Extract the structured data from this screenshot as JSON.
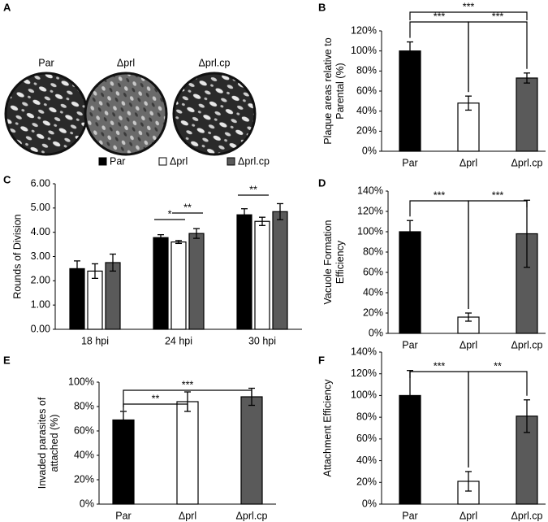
{
  "panel_a": {
    "label": "A",
    "captions": [
      "Par",
      "Δprl",
      "Δprl.cp"
    ]
  },
  "chart_data": [
    {
      "type": "bar",
      "panel_label": "B",
      "ylabel": [
        "Plaque areas relative to",
        "Parental (%)"
      ],
      "categories": [
        "Par",
        "Δprl",
        "Δprl.cp"
      ],
      "values": [
        100,
        48,
        73
      ],
      "errors": [
        9,
        7,
        5
      ],
      "colors": [
        "#000000",
        "#ffffff",
        "#5a5a5a"
      ],
      "ylim": [
        0,
        120
      ],
      "yticks": [
        {
          "value": 0,
          "label": "0%"
        },
        {
          "value": 20,
          "label": "20%"
        },
        {
          "value": 40,
          "label": "40%"
        },
        {
          "value": 60,
          "label": "60%"
        },
        {
          "value": 80,
          "label": "80%"
        },
        {
          "value": 100,
          "label": "100%"
        },
        {
          "value": 120,
          "label": "120%"
        }
      ],
      "comparisons": [
        {
          "label": "***",
          "between": [
            "Par",
            "Δprl"
          ]
        },
        {
          "label": "***",
          "between": [
            "Δprl",
            "Δprl.cp"
          ]
        },
        {
          "label": "***",
          "between": [
            "Par",
            "Δprl.cp"
          ]
        }
      ]
    },
    {
      "type": "grouped-bar",
      "panel_label": "C",
      "ylabel": [
        "Rounds of Division"
      ],
      "categories": [
        "18 hpi",
        "24 hpi",
        "30 hpi"
      ],
      "series": [
        {
          "name": "Par",
          "color": "#000000",
          "values": [
            2.5,
            3.78,
            4.72
          ],
          "errors": [
            0.32,
            0.12,
            0.25
          ]
        },
        {
          "name": "Δprl",
          "color": "#ffffff",
          "values": [
            2.4,
            3.6,
            4.45
          ],
          "errors": [
            0.3,
            0.06,
            0.17
          ]
        },
        {
          "name": "Δprl.cp",
          "color": "#5a5a5a",
          "values": [
            2.75,
            3.95,
            4.85
          ],
          "errors": [
            0.35,
            0.2,
            0.33
          ]
        }
      ],
      "ylim": [
        0,
        6
      ],
      "yticks": [
        {
          "value": 0,
          "label": "0.00"
        },
        {
          "value": 1,
          "label": "1.00"
        },
        {
          "value": 2,
          "label": "2.00"
        },
        {
          "value": 3,
          "label": "3.00"
        },
        {
          "value": 4,
          "label": "4.00"
        },
        {
          "value": 5,
          "label": "5.00"
        },
        {
          "value": 6,
          "label": "6.00"
        }
      ],
      "comparisons": [
        {
          "label": "*",
          "category": "24 hpi",
          "between": [
            "Par",
            "Δprl"
          ]
        },
        {
          "label": "**",
          "category": "24 hpi",
          "between": [
            "Δprl",
            "Δprl.cp"
          ]
        },
        {
          "label": "**",
          "category": "30 hpi",
          "between": [
            "Par",
            "Δprl"
          ]
        }
      ]
    },
    {
      "type": "bar",
      "panel_label": "D",
      "ylabel": [
        "Vacuole Formation",
        "Efficiency"
      ],
      "categories": [
        "Par",
        "Δprl",
        "Δprl.cp"
      ],
      "values": [
        100,
        16,
        98
      ],
      "errors": [
        11,
        4,
        33
      ],
      "colors": [
        "#000000",
        "#ffffff",
        "#5a5a5a"
      ],
      "ylim": [
        0,
        140
      ],
      "yticks": [
        {
          "value": 0,
          "label": "0%"
        },
        {
          "value": 20,
          "label": "20%"
        },
        {
          "value": 40,
          "label": "40%"
        },
        {
          "value": 60,
          "label": "60%"
        },
        {
          "value": 80,
          "label": "80%"
        },
        {
          "value": 100,
          "label": "100%"
        },
        {
          "value": 120,
          "label": "120%"
        },
        {
          "value": 140,
          "label": "140%"
        }
      ],
      "comparisons": [
        {
          "label": "***",
          "between": [
            "Par",
            "Δprl"
          ]
        },
        {
          "label": "***",
          "between": [
            "Δprl",
            "Δprl.cp"
          ]
        }
      ]
    },
    {
      "type": "bar",
      "panel_label": "E",
      "ylabel": [
        "Invaded parasites of",
        "attached (%)"
      ],
      "categories": [
        "Par",
        "Δprl",
        "Δprl.cp"
      ],
      "values": [
        69,
        84,
        88
      ],
      "errors": [
        7,
        8,
        7
      ],
      "colors": [
        "#000000",
        "#ffffff",
        "#5a5a5a"
      ],
      "ylim": [
        0,
        100
      ],
      "yticks": [
        {
          "value": 0,
          "label": "0%"
        },
        {
          "value": 20,
          "label": "20%"
        },
        {
          "value": 40,
          "label": "40%"
        },
        {
          "value": 60,
          "label": "60%"
        },
        {
          "value": 80,
          "label": "80%"
        },
        {
          "value": 100,
          "label": "100%"
        }
      ],
      "comparisons": [
        {
          "label": "***",
          "between": [
            "Par",
            "Δprl.cp"
          ]
        },
        {
          "label": "**",
          "between": [
            "Par",
            "Δprl"
          ]
        }
      ]
    },
    {
      "type": "bar",
      "panel_label": "F",
      "ylabel": [
        "Attachment Efficiency"
      ],
      "categories": [
        "Par",
        "Δprl",
        "Δprl.cp"
      ],
      "values": [
        100,
        21,
        81
      ],
      "errors": [
        23,
        9,
        15
      ],
      "colors": [
        "#000000",
        "#ffffff",
        "#5a5a5a"
      ],
      "ylim": [
        0,
        140
      ],
      "yticks": [
        {
          "value": 0,
          "label": "0%"
        },
        {
          "value": 20,
          "label": "20%"
        },
        {
          "value": 40,
          "label": "40%"
        },
        {
          "value": 60,
          "label": "60%"
        },
        {
          "value": 80,
          "label": "80%"
        },
        {
          "value": 100,
          "label": "100%"
        },
        {
          "value": 120,
          "label": "120%"
        },
        {
          "value": 140,
          "label": "140%"
        }
      ],
      "comparisons": [
        {
          "label": "***",
          "between": [
            "Par",
            "Δprl"
          ]
        },
        {
          "label": "**",
          "between": [
            "Δprl",
            "Δprl.cp"
          ]
        }
      ]
    }
  ]
}
